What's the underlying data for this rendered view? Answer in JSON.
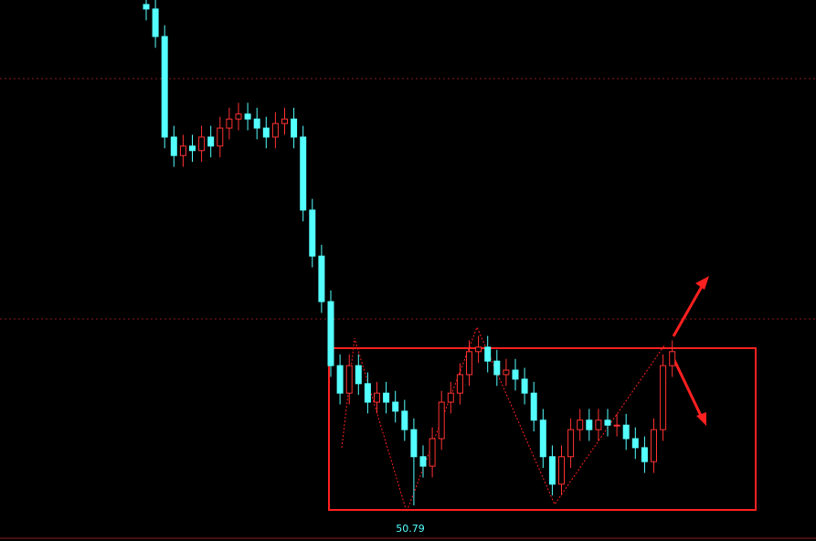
{
  "chart_data": {
    "type": "candlestick",
    "ylim": [
      50,
      62
    ],
    "up_color": "#ff3232",
    "down_color": "#54ffff",
    "annotation": 50.79,
    "annotation_color": "#54ffff",
    "open": [
      61.9,
      61.8,
      61.19,
      58.96,
      58.55,
      58.76,
      58.66,
      58.96,
      58.76,
      59.16,
      59.36,
      59.47,
      59.36,
      59.16,
      58.96,
      59.26,
      59.36,
      58.96,
      57.34,
      56.32,
      55.31,
      53.89,
      53.28,
      53.89,
      53.49,
      53.08,
      53.28,
      53.08,
      52.88,
      52.47,
      51.87,
      51.66,
      52.27,
      53.08,
      53.28,
      53.69,
      54.2,
      54.3,
      53.99,
      53.69,
      53.79,
      53.59,
      53.28,
      52.68,
      51.87,
      51.26,
      51.87,
      52.47,
      52.68,
      52.47,
      52.68,
      52.57,
      52.57,
      52.27,
      52.07,
      51.76,
      52.47,
      53.89
    ],
    "high": [
      62.15,
      62.05,
      61.44,
      59.21,
      59.01,
      59.01,
      59.21,
      59.21,
      59.41,
      59.61,
      59.72,
      59.72,
      59.61,
      59.41,
      59.51,
      59.61,
      59.61,
      59.21,
      57.59,
      56.57,
      55.56,
      54.14,
      54.14,
      54.14,
      53.74,
      53.53,
      53.53,
      53.33,
      53.13,
      52.72,
      52.12,
      52.52,
      53.33,
      53.53,
      53.94,
      54.45,
      54.55,
      54.55,
      54.24,
      54.04,
      54.04,
      53.84,
      53.53,
      52.93,
      52.12,
      52.12,
      52.72,
      52.93,
      52.93,
      52.93,
      52.93,
      52.82,
      52.82,
      52.52,
      52.32,
      52.72,
      54.14,
      54.45
    ],
    "low": [
      61.55,
      60.94,
      58.71,
      58.3,
      58.3,
      58.41,
      58.41,
      58.51,
      58.51,
      58.91,
      59.11,
      59.11,
      58.91,
      58.71,
      58.71,
      59.01,
      58.71,
      57.09,
      56.07,
      55.06,
      53.64,
      53.03,
      53.03,
      53.24,
      52.83,
      52.83,
      52.83,
      52.63,
      52.22,
      50.79,
      51.41,
      51.41,
      52.02,
      52.83,
      53.03,
      53.44,
      53.95,
      53.74,
      53.44,
      53.44,
      53.34,
      53.03,
      52.43,
      51.62,
      51.01,
      51.01,
      51.62,
      52.22,
      52.22,
      52.22,
      52.32,
      52.32,
      52.02,
      51.82,
      51.51,
      51.51,
      52.22,
      53.64
    ],
    "close": [
      61.8,
      61.19,
      58.96,
      58.55,
      58.76,
      58.66,
      58.96,
      58.76,
      59.16,
      59.36,
      59.47,
      59.36,
      59.16,
      58.96,
      59.26,
      59.36,
      58.96,
      57.34,
      56.32,
      55.31,
      53.89,
      53.28,
      53.89,
      53.49,
      53.08,
      53.28,
      53.08,
      52.88,
      52.47,
      51.87,
      51.66,
      52.27,
      53.08,
      53.28,
      53.69,
      54.2,
      54.3,
      53.99,
      53.69,
      53.79,
      53.59,
      53.28,
      52.68,
      51.87,
      51.26,
      51.87,
      52.47,
      52.68,
      52.47,
      52.68,
      52.57,
      52.57,
      52.27,
      52.07,
      51.76,
      52.47,
      53.89,
      54.2
    ]
  }
}
